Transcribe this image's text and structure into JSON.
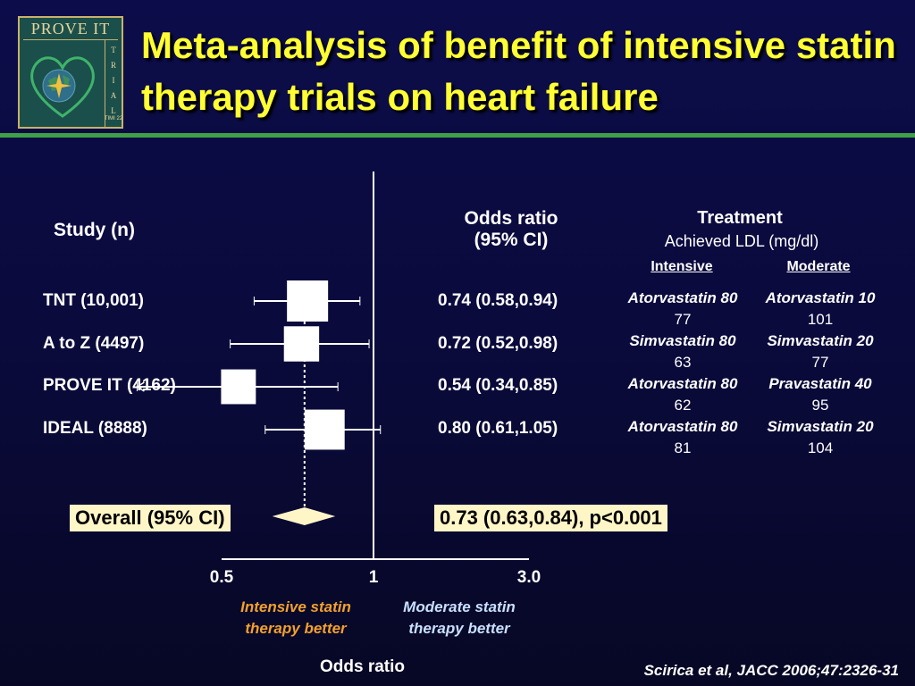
{
  "logo": {
    "name": "PROVE IT",
    "trial_letters": [
      "T",
      "R",
      "I",
      "A",
      "L"
    ],
    "sub": "TIMI 22"
  },
  "title": "Meta-analysis of benefit of intensive statin therapy trials on heart failure",
  "columns": {
    "study": "Study (n)",
    "odds_ratio_line1": "Odds ratio",
    "odds_ratio_line2": "(95% CI)",
    "treatment": "Treatment",
    "achieved_ldl": "Achieved LDL (mg/dl)",
    "intensive": "Intensive",
    "moderate": "Moderate"
  },
  "studies": [
    {
      "label": "TNT (10,001)",
      "or_text": "0.74 (0.58,0.94)",
      "or": 0.74,
      "lo": 0.58,
      "hi": 0.94,
      "n": 10001,
      "intensive_drug": "Atorvastatin 80",
      "intensive_ldl": "77",
      "moderate_drug": "Atorvastatin 10",
      "moderate_ldl": "101"
    },
    {
      "label": "A to Z (4497)",
      "or_text": "0.72 (0.52,0.98)",
      "or": 0.72,
      "lo": 0.52,
      "hi": 0.98,
      "n": 4497,
      "intensive_drug": "Simvastatin 80",
      "intensive_ldl": "63",
      "moderate_drug": "Simvastatin 20",
      "moderate_ldl": "77"
    },
    {
      "label": "PROVE IT (4162)",
      "or_text": "0.54 (0.34,0.85)",
      "or": 0.54,
      "lo": 0.34,
      "hi": 0.85,
      "n": 4162,
      "intensive_drug": "Atorvastatin 80",
      "intensive_ldl": "62",
      "moderate_drug": "Pravastatin 40",
      "moderate_ldl": "95"
    },
    {
      "label": "IDEAL (8888)",
      "or_text": "0.80 (0.61,1.05)",
      "or": 0.8,
      "lo": 0.61,
      "hi": 1.05,
      "n": 8888,
      "intensive_drug": "Atorvastatin 80",
      "intensive_ldl": "81",
      "moderate_drug": "Simvastatin 20",
      "moderate_ldl": "104"
    }
  ],
  "overall": {
    "label": "Overall (95% CI)",
    "text": "0.73 (0.63,0.84), p<0.001",
    "or": 0.73,
    "lo": 0.63,
    "hi": 0.84
  },
  "axis": {
    "title": "Odds ratio",
    "scale": "log",
    "ticks": [
      {
        "value": 0.5,
        "label": "0.5"
      },
      {
        "value": 1,
        "label": "1"
      },
      {
        "value": 3.0,
        "label": "3.0"
      }
    ],
    "left_note_line1": "Intensive statin",
    "left_note_line2": "therapy better",
    "right_note_line1": "Moderate statin",
    "right_note_line2": "therapy better"
  },
  "colors": {
    "title": "#ffff33",
    "intensive_note": "#f2a12d",
    "moderate_note": "#c8e0ff",
    "label_box": "#fff6c8",
    "accent_rule": "#3fa047"
  },
  "citation": "Scirica et al, JACC 2006;47:2326-31"
}
